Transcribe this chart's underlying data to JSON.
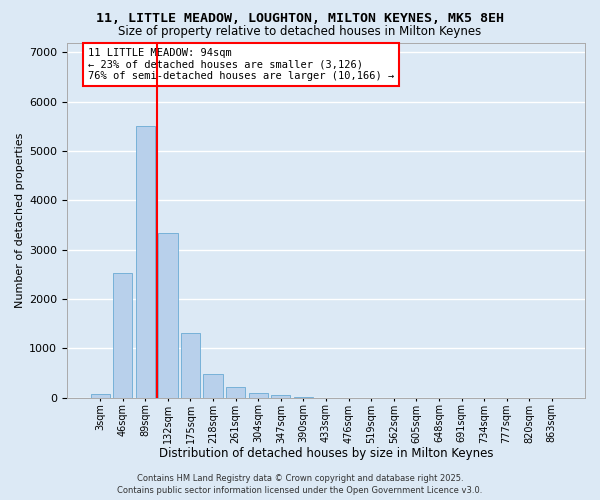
{
  "title_line1": "11, LITTLE MEADOW, LOUGHTON, MILTON KEYNES, MK5 8EH",
  "title_line2": "Size of property relative to detached houses in Milton Keynes",
  "xlabel": "Distribution of detached houses by size in Milton Keynes",
  "ylabel": "Number of detached properties",
  "categories": [
    "3sqm",
    "46sqm",
    "89sqm",
    "132sqm",
    "175sqm",
    "218sqm",
    "261sqm",
    "304sqm",
    "347sqm",
    "390sqm",
    "433sqm",
    "476sqm",
    "519sqm",
    "562sqm",
    "605sqm",
    "648sqm",
    "691sqm",
    "734sqm",
    "777sqm",
    "820sqm",
    "863sqm"
  ],
  "values": [
    85,
    2520,
    5500,
    3340,
    1310,
    490,
    220,
    100,
    50,
    25,
    0,
    0,
    0,
    0,
    0,
    0,
    0,
    0,
    0,
    0,
    0
  ],
  "bar_color": "#b8d0eb",
  "bar_edge_color": "#6aaad4",
  "ylim": [
    0,
    7200
  ],
  "yticks": [
    0,
    1000,
    2000,
    3000,
    4000,
    5000,
    6000,
    7000
  ],
  "annotation_title": "11 LITTLE MEADOW: 94sqm",
  "annotation_line2": "← 23% of detached houses are smaller (3,126)",
  "annotation_line3": "76% of semi-detached houses are larger (10,166) →",
  "vline_x": 2.5,
  "bg_color": "#dce9f5",
  "grid_color": "#ffffff",
  "footer_line1": "Contains HM Land Registry data © Crown copyright and database right 2025.",
  "footer_line2": "Contains public sector information licensed under the Open Government Licence v3.0."
}
